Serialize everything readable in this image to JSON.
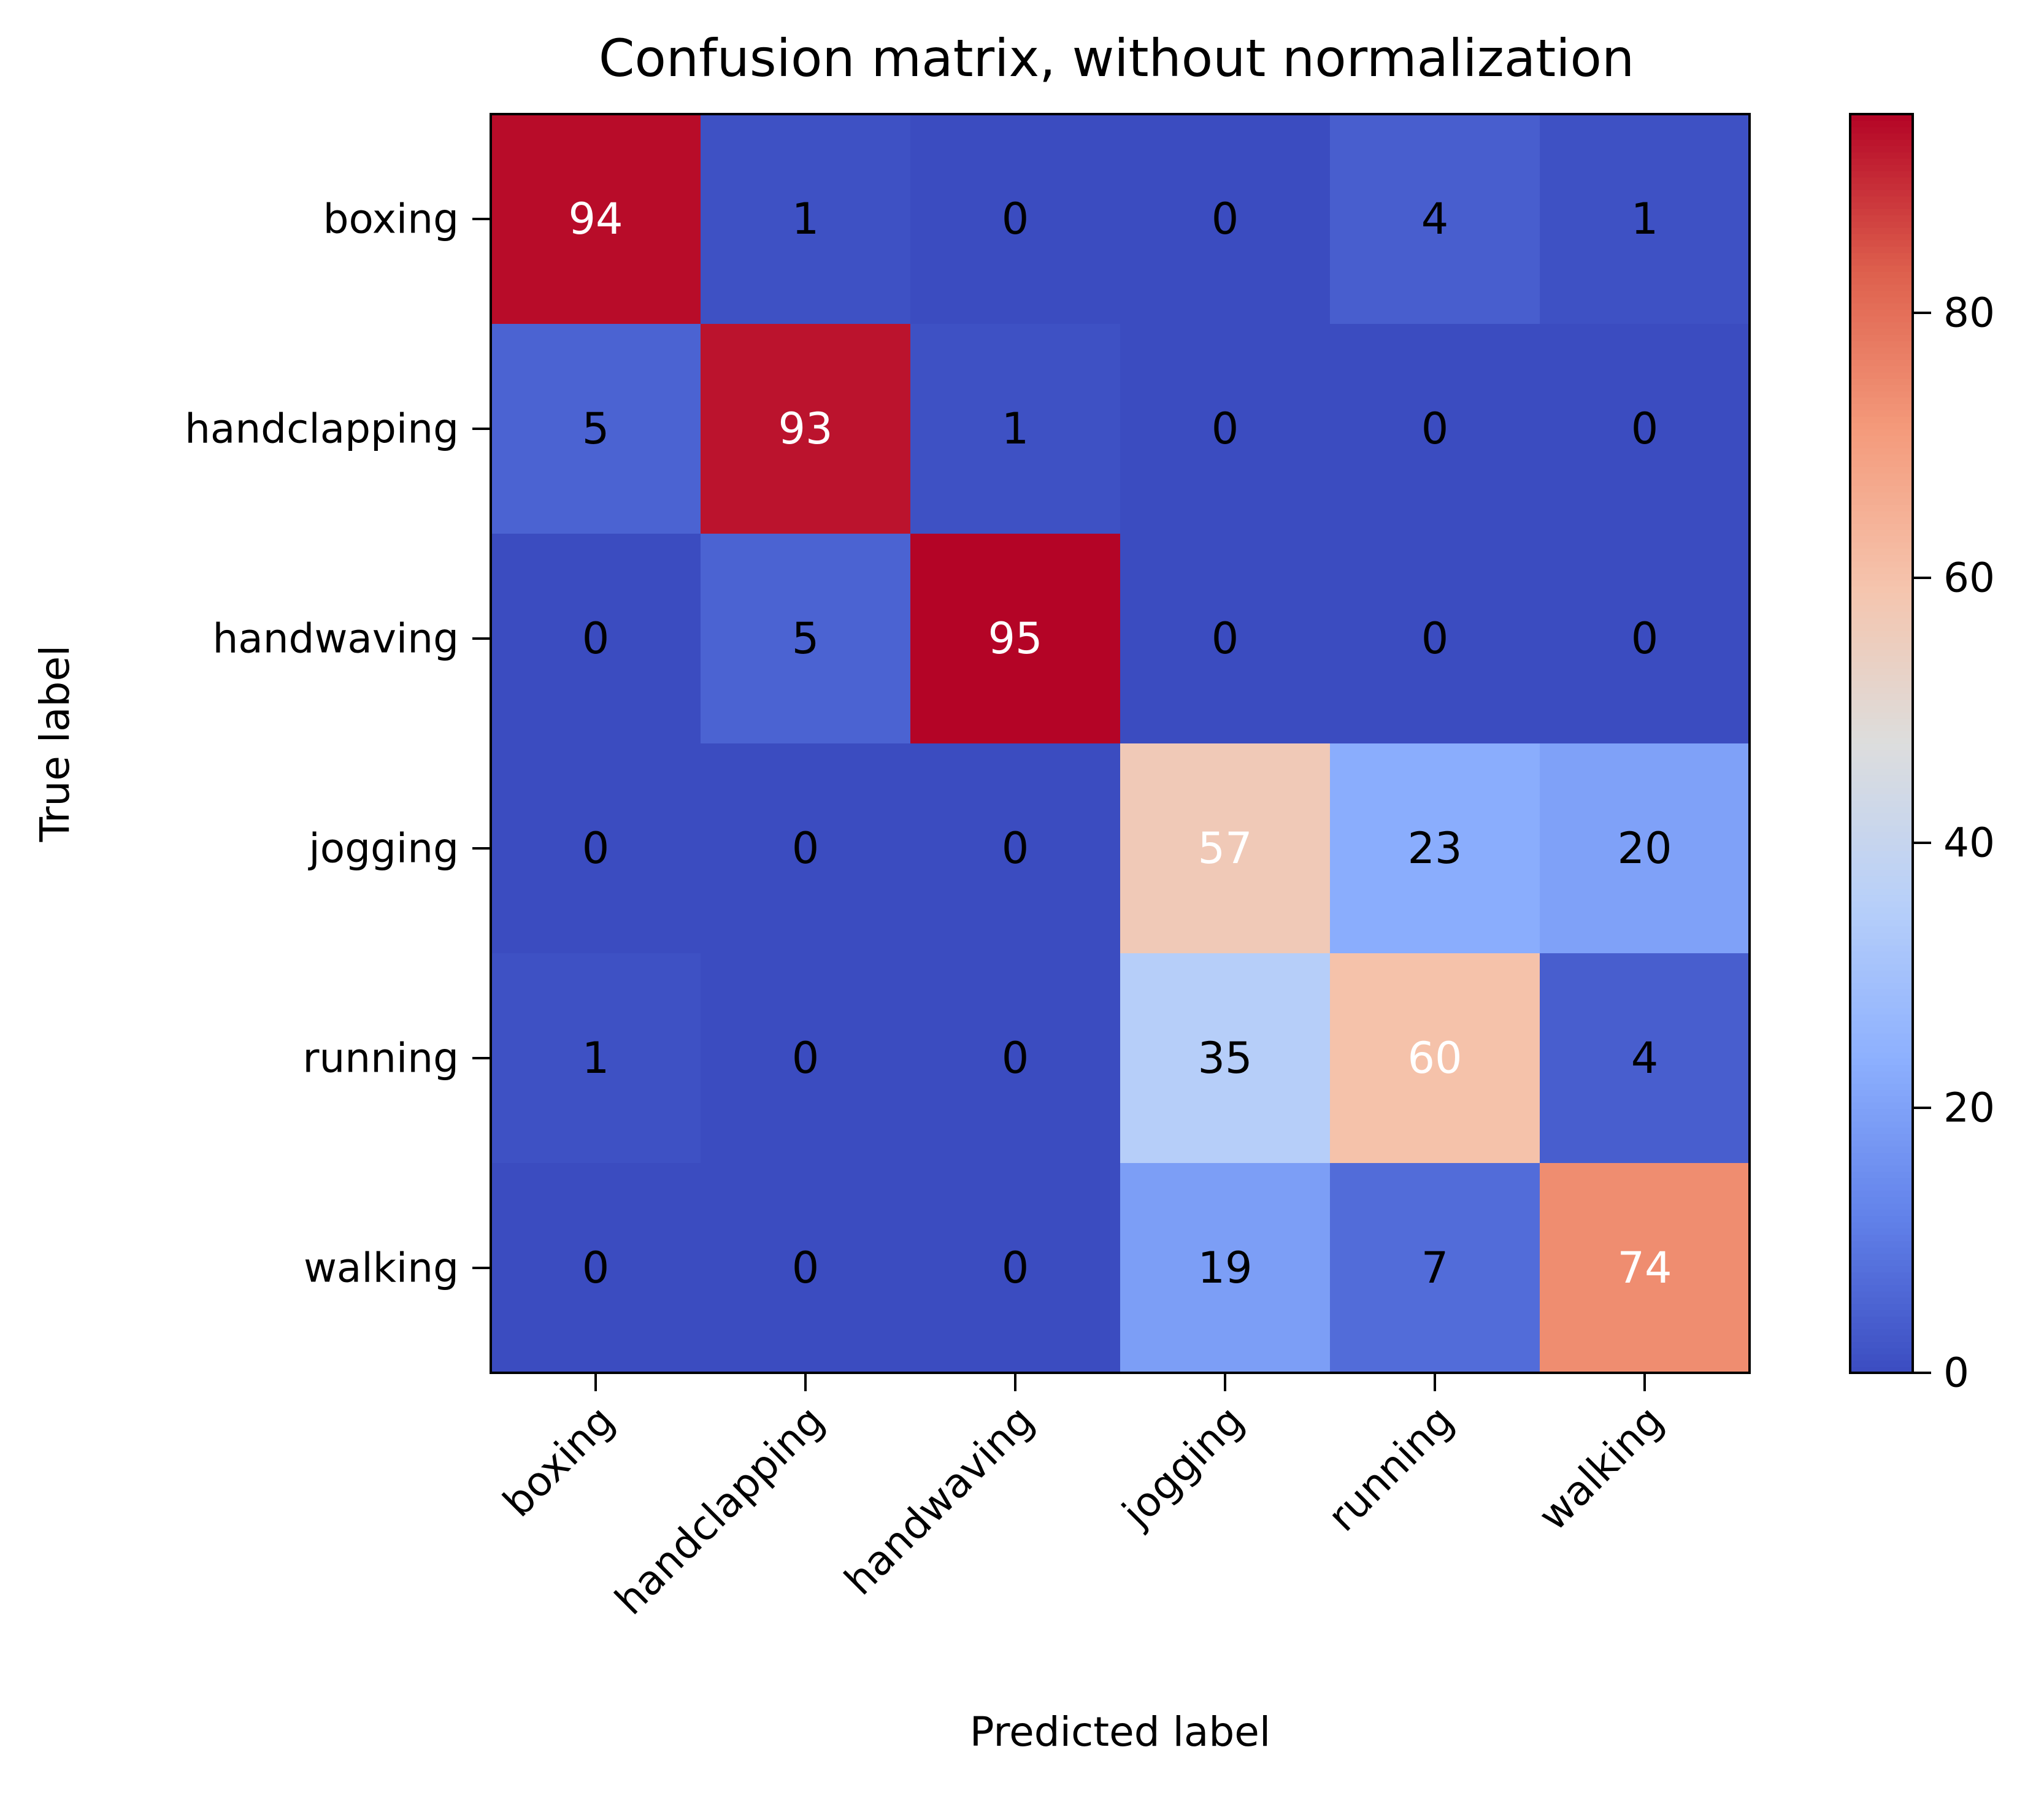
{
  "chart_data": {
    "type": "heatmap",
    "title": "Confusion matrix, without normalization",
    "xlabel": "Predicted label",
    "ylabel": "True label",
    "x_categories": [
      "boxing",
      "handclapping",
      "handwaving",
      "jogging",
      "running",
      "walking"
    ],
    "y_categories": [
      "boxing",
      "handclapping",
      "handwaving",
      "jogging",
      "running",
      "walking"
    ],
    "values": [
      [
        94,
        1,
        0,
        0,
        4,
        1
      ],
      [
        5,
        93,
        1,
        0,
        0,
        0
      ],
      [
        0,
        5,
        95,
        0,
        0,
        0
      ],
      [
        0,
        0,
        0,
        57,
        23,
        20
      ],
      [
        1,
        0,
        0,
        35,
        60,
        4
      ],
      [
        0,
        0,
        0,
        19,
        7,
        74
      ]
    ],
    "colormap": "coolwarm",
    "vmin": 0,
    "vmax": 95,
    "colorbar_ticks": [
      0,
      20,
      40,
      60,
      80
    ],
    "text_color_threshold": 47.5,
    "text_colors": {
      "light": "#ffffff",
      "dark": "#000000"
    }
  }
}
